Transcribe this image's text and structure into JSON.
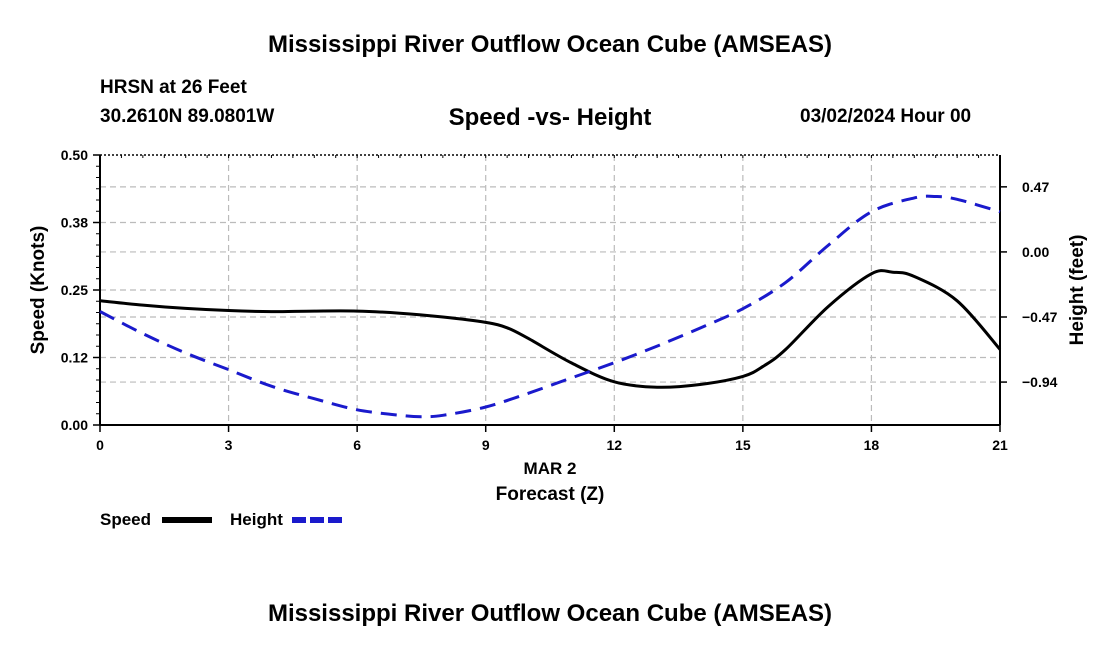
{
  "header": {
    "title": "Mississippi River Outflow Ocean Cube (AMSEAS)",
    "station": "HRSN at 26 Feet",
    "coords": "30.2610N  89.0801W",
    "datetime": "03/02/2024 Hour 00",
    "footer_title": "Mississippi River Outflow Ocean Cube (AMSEAS)"
  },
  "chart_data": {
    "type": "line",
    "title": "Speed -vs- Height",
    "xlabel": "Forecast (Z)",
    "date_label": "MAR 2",
    "ylabel_left": "Speed (Knots)",
    "ylabel_right": "Height (feet)",
    "xlim": [
      0,
      21
    ],
    "x_ticks": [
      "0",
      "3",
      "6",
      "9",
      "12",
      "15",
      "18",
      "21"
    ],
    "ylim_left": [
      0,
      0.5
    ],
    "y_ticks_left": [
      "0.00",
      "0.12",
      "0.25",
      "0.38",
      "0.50"
    ],
    "ylim_right": [
      -1.25,
      0.7
    ],
    "y_ticks_right": [
      "0.47",
      "0.00",
      "−0.47",
      "−0.94"
    ],
    "y_ticks_right_values": [
      0.47,
      0.0,
      -0.47,
      -0.94
    ],
    "series": [
      {
        "name": "Speed",
        "axis": "left",
        "color": "#000000",
        "style": "solid",
        "x": [
          0,
          1,
          2,
          3,
          4,
          5,
          6,
          7,
          8,
          9,
          9.5,
          10,
          11,
          12,
          13,
          14,
          15,
          15.5,
          16,
          17,
          18,
          18.5,
          19,
          20,
          21
        ],
        "values": [
          0.23,
          0.222,
          0.216,
          0.212,
          0.21,
          0.211,
          0.211,
          0.207,
          0.2,
          0.19,
          0.18,
          0.16,
          0.115,
          0.08,
          0.07,
          0.075,
          0.09,
          0.11,
          0.14,
          0.22,
          0.28,
          0.283,
          0.275,
          0.23,
          0.14
        ]
      },
      {
        "name": "Height",
        "axis": "right",
        "color": "#1a1acc",
        "style": "dashed",
        "x": [
          0,
          1,
          2,
          3,
          4,
          5,
          6,
          7,
          7.5,
          8,
          9,
          10,
          11,
          12,
          13,
          14,
          15,
          16,
          17,
          18,
          19,
          19.5,
          20,
          21
        ],
        "values": [
          -0.43,
          -0.59,
          -0.73,
          -0.85,
          -0.97,
          -1.06,
          -1.14,
          -1.18,
          -1.19,
          -1.18,
          -1.12,
          -1.02,
          -0.91,
          -0.8,
          -0.68,
          -0.55,
          -0.41,
          -0.22,
          0.05,
          0.29,
          0.39,
          0.4,
          0.38,
          0.29
        ]
      }
    ]
  },
  "legend": {
    "speed_label": "Speed",
    "height_label": "Height"
  },
  "colors": {
    "speed": "#000000",
    "height": "#1a1acc",
    "grid": "#bbbbbb"
  }
}
